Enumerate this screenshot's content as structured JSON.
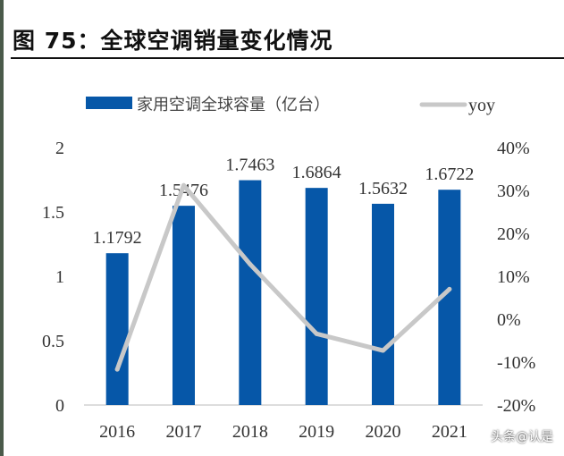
{
  "title": "图 75：全球空调销量变化情况",
  "watermark": "头条@认是",
  "chart_data": {
    "type": "bar+line",
    "categories": [
      "2016",
      "2017",
      "2018",
      "2019",
      "2020",
      "2021"
    ],
    "series": [
      {
        "name": "家用空调全球容量（亿台）",
        "type": "bar",
        "axis": "left",
        "color": "#0657A8",
        "values": [
          1.1792,
          1.5476,
          1.7463,
          1.6864,
          1.5632,
          1.6722
        ],
        "labels": [
          "1.1792",
          "1.5476",
          "1.7463",
          "1.6864",
          "1.5632",
          "1.6722"
        ]
      },
      {
        "name": "yoy",
        "type": "line",
        "axis": "right",
        "color": "#C8C8C8",
        "values": [
          -11.7,
          31.2,
          12.8,
          -3.4,
          -7.3,
          7.0
        ]
      }
    ],
    "left_axis": {
      "range": [
        0,
        2
      ],
      "ticks": [
        "0",
        "0.5",
        "1",
        "1.5",
        "2"
      ]
    },
    "right_axis": {
      "range": [
        -20,
        40
      ],
      "unit": "%",
      "ticks": [
        "-20%",
        "-10%",
        "0%",
        "10%",
        "20%",
        "30%",
        "40%"
      ]
    },
    "legend_placement": "top",
    "grid": false
  }
}
